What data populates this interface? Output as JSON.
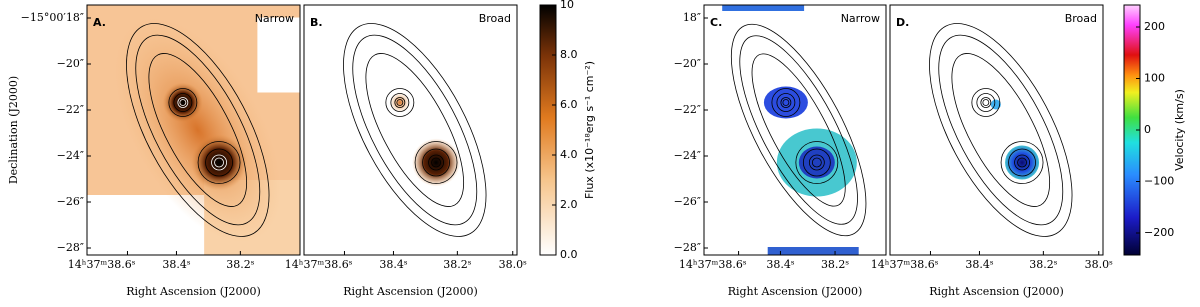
{
  "panels": [
    {
      "letter": "A.",
      "title": "Narrow",
      "y_label": "Declination (J2000)",
      "y_ticks": [
        "−15°00′18″",
        "−20″",
        "−22″",
        "−24″",
        "−26″",
        "−28″"
      ],
      "x_ticks": [
        "14ʰ37ᵐ38.6ˢ",
        "38.4ˢ",
        "38.2ˢ"
      ],
      "x_label": "Right Ascension (J2000)"
    },
    {
      "letter": "B.",
      "title": "Broad",
      "x_ticks": [
        "14ʰ37ᵐ38.6ˢ",
        "38.4ˢ",
        "38.2ˢ",
        "38.0ˢ"
      ],
      "x_label": "Right Ascension (J2000)"
    },
    {
      "letter": "C.",
      "title": "Narrow",
      "y_ticks": [
        "18″",
        "−20″",
        "−22″",
        "−24″",
        "−26″",
        "−28″"
      ],
      "x_ticks": [
        "14ʰ37ᵐ38.6ˢ",
        "38.4ˢ",
        "38.2ˢ"
      ],
      "x_label": "Right Ascension (J2000)"
    },
    {
      "letter": "D.",
      "title": "Broad",
      "x_ticks": [
        "14ʰ37ᵐ38.6ˢ",
        "38.4ˢ",
        "38.2ˢ",
        "38.0ˢ"
      ],
      "x_label": "Right Ascension (J2000)"
    }
  ],
  "colorbars": [
    {
      "label": "Flux (x10⁻¹⁸erg s⁻¹ cm⁻²)",
      "ticks": [
        "0.0",
        "2.0",
        "4.0",
        "6.0",
        "8.0",
        "10"
      ]
    },
    {
      "label": "Velocity (km/s)",
      "ticks": [
        "−200",
        "−100",
        "0",
        "100",
        "200"
      ]
    }
  ]
}
